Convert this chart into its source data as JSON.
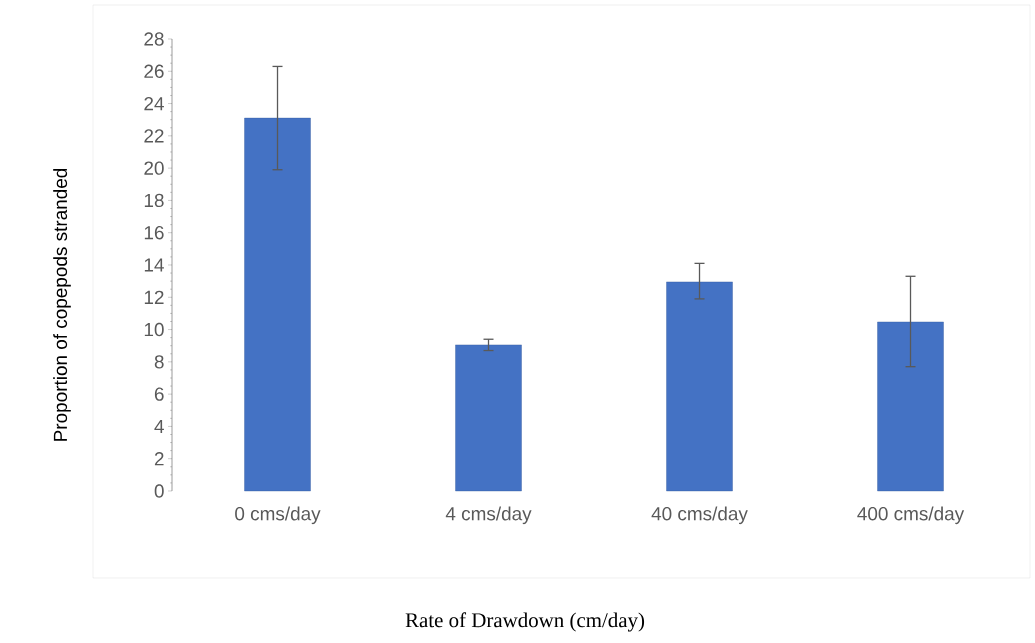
{
  "chart_data": {
    "type": "bar",
    "xlabel": "Rate of Drawdown (cm/day)",
    "ylabel": "Proportion of copepods stranded",
    "categories": [
      "0 cms/day",
      "4 cms/day",
      "40 cms/day",
      "400 cms/day"
    ],
    "values": [
      23.1,
      9.05,
      12.95,
      10.47
    ],
    "errors": [
      [
        19.9,
        26.3
      ],
      [
        8.7,
        9.4
      ],
      [
        11.9,
        14.1
      ],
      [
        7.7,
        13.3
      ]
    ],
    "color": "#4472c4",
    "ylim": [
      0,
      28
    ],
    "yticks": [
      0,
      2,
      4,
      6,
      8,
      10,
      12,
      14,
      16,
      18,
      20,
      22,
      24,
      26,
      28
    ],
    "grid": false
  }
}
